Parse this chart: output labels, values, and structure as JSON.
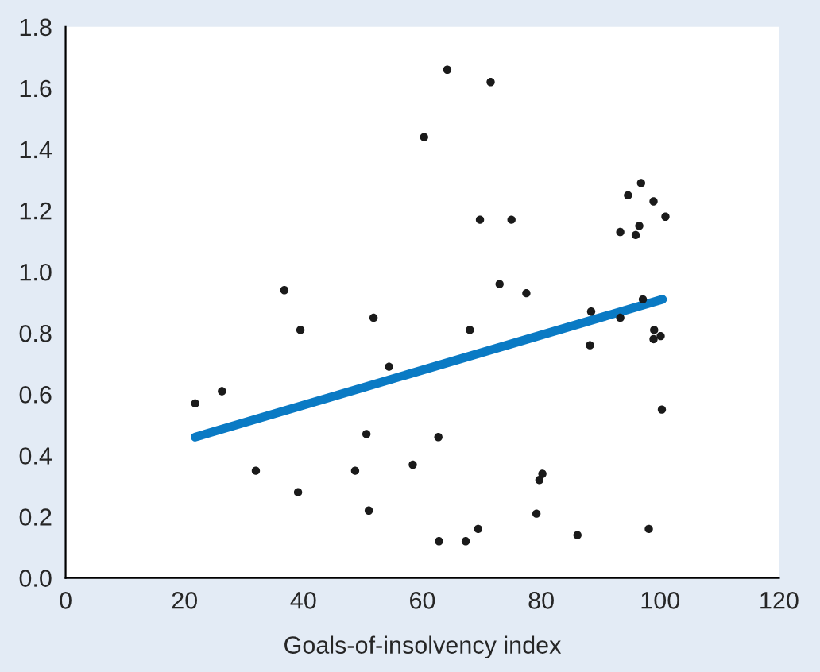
{
  "chart_data": {
    "type": "scatter",
    "xlabel": "Goals-of-insolvency index",
    "xlim": [
      0,
      120
    ],
    "ylim": [
      0,
      1.8
    ],
    "xticks": [
      0,
      20,
      40,
      60,
      80,
      100,
      120
    ],
    "yticks": [
      {
        "value": 0,
        "label": "0.0"
      },
      {
        "value": 0.2,
        "label": "0.2"
      },
      {
        "value": 0.4,
        "label": "0.4"
      },
      {
        "value": 0.6,
        "label": "0.6"
      },
      {
        "value": 0.8,
        "label": "0.8"
      },
      {
        "value": 1.0,
        "label": "1.0"
      },
      {
        "value": 1.2,
        "label": "1.2"
      },
      {
        "value": 1.4,
        "label": "1.4"
      },
      {
        "value": 1.6,
        "label": "1.6"
      },
      {
        "value": 1.8,
        "label": "1.8"
      }
    ],
    "grid": false,
    "series": [
      {
        "marker": "circle",
        "color": "#1a1a1a",
        "x": [
          21.8,
          26.3,
          36.8,
          39.5,
          51.8,
          54.4,
          50.6,
          32.0,
          48.7,
          39.1,
          51.0,
          64.2,
          71.5,
          60.3,
          69.7,
          75.0,
          73.0,
          77.5,
          68.0,
          88.4,
          88.2,
          93.3,
          96.8,
          94.6,
          98.9,
          100.9,
          93.3,
          96.5,
          95.9,
          97.1,
          99.0,
          98.9,
          100.1,
          100.3,
          62.7,
          58.4,
          80.2,
          79.7,
          79.2,
          69.4,
          62.8,
          67.3,
          86.1,
          98.1
        ],
        "values": [
          0.57,
          0.61,
          0.94,
          0.81,
          0.85,
          0.69,
          0.47,
          0.35,
          0.35,
          0.28,
          0.22,
          1.66,
          1.62,
          1.44,
          1.17,
          1.17,
          0.96,
          0.93,
          0.81,
          0.87,
          0.76,
          0.85,
          1.29,
          1.25,
          1.23,
          1.18,
          1.13,
          1.15,
          1.12,
          0.91,
          0.81,
          0.78,
          0.79,
          0.55,
          0.46,
          0.37,
          0.34,
          0.32,
          0.21,
          0.16,
          0.12,
          0.12,
          0.14,
          0.16
        ]
      },
      {
        "type": "line",
        "marker": "none",
        "color": "#0a7ac4",
        "x": [
          21.8,
          100.4
        ],
        "values": [
          0.46,
          0.91
        ]
      }
    ]
  }
}
